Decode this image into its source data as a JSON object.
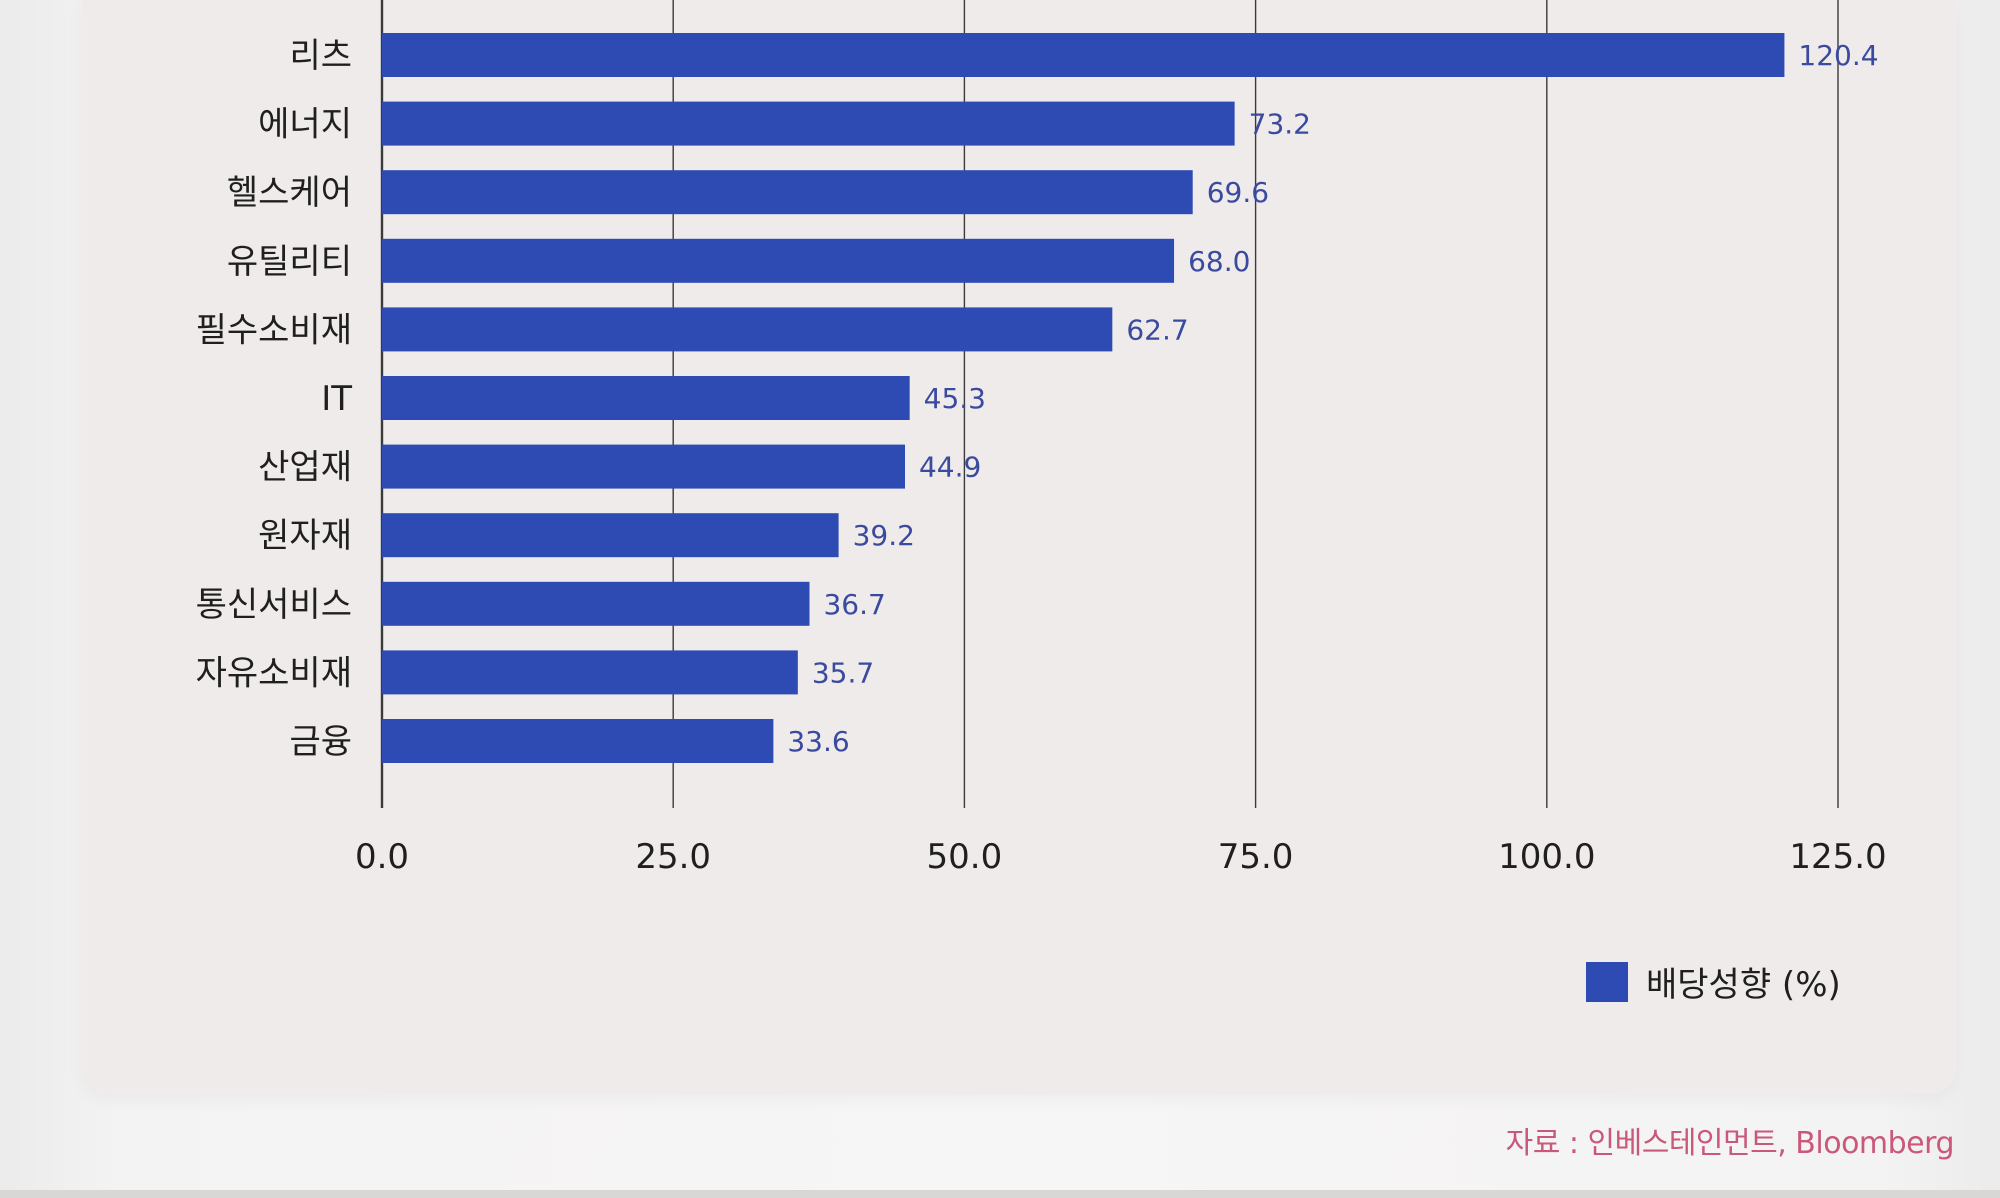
{
  "chart_data": {
    "type": "bar",
    "orientation": "horizontal",
    "categories": [
      "리츠",
      "에너지",
      "헬스케어",
      "유틸리티",
      "필수소비재",
      "IT",
      "산업재",
      "원자재",
      "통신서비스",
      "자유소비재",
      "금융"
    ],
    "series": [
      {
        "name": "배당성향 (%)",
        "values": [
          120.4,
          73.2,
          69.6,
          68.0,
          62.7,
          45.3,
          44.9,
          39.2,
          36.7,
          35.7,
          33.6
        ],
        "labels": [
          "120.4",
          "73.2",
          "69.6",
          "68.0",
          "62.7",
          "45.3",
          "44.9",
          "39.2",
          "36.7",
          "35.7",
          "33.6"
        ]
      }
    ],
    "xticks": [
      "0.0",
      "25.0",
      "50.0",
      "75.0",
      "100.0",
      "125.0"
    ],
    "xlim": [
      0,
      125
    ],
    "grid": true,
    "legend_position": "bottom-right",
    "colors": {
      "bar": "#2e4bb3",
      "value_label": "#3a4a9e",
      "axis_text": "#1f1f1f",
      "grid": "#3a3a3a"
    }
  },
  "source": "자료 : 인베스테인먼트, Bloomberg"
}
